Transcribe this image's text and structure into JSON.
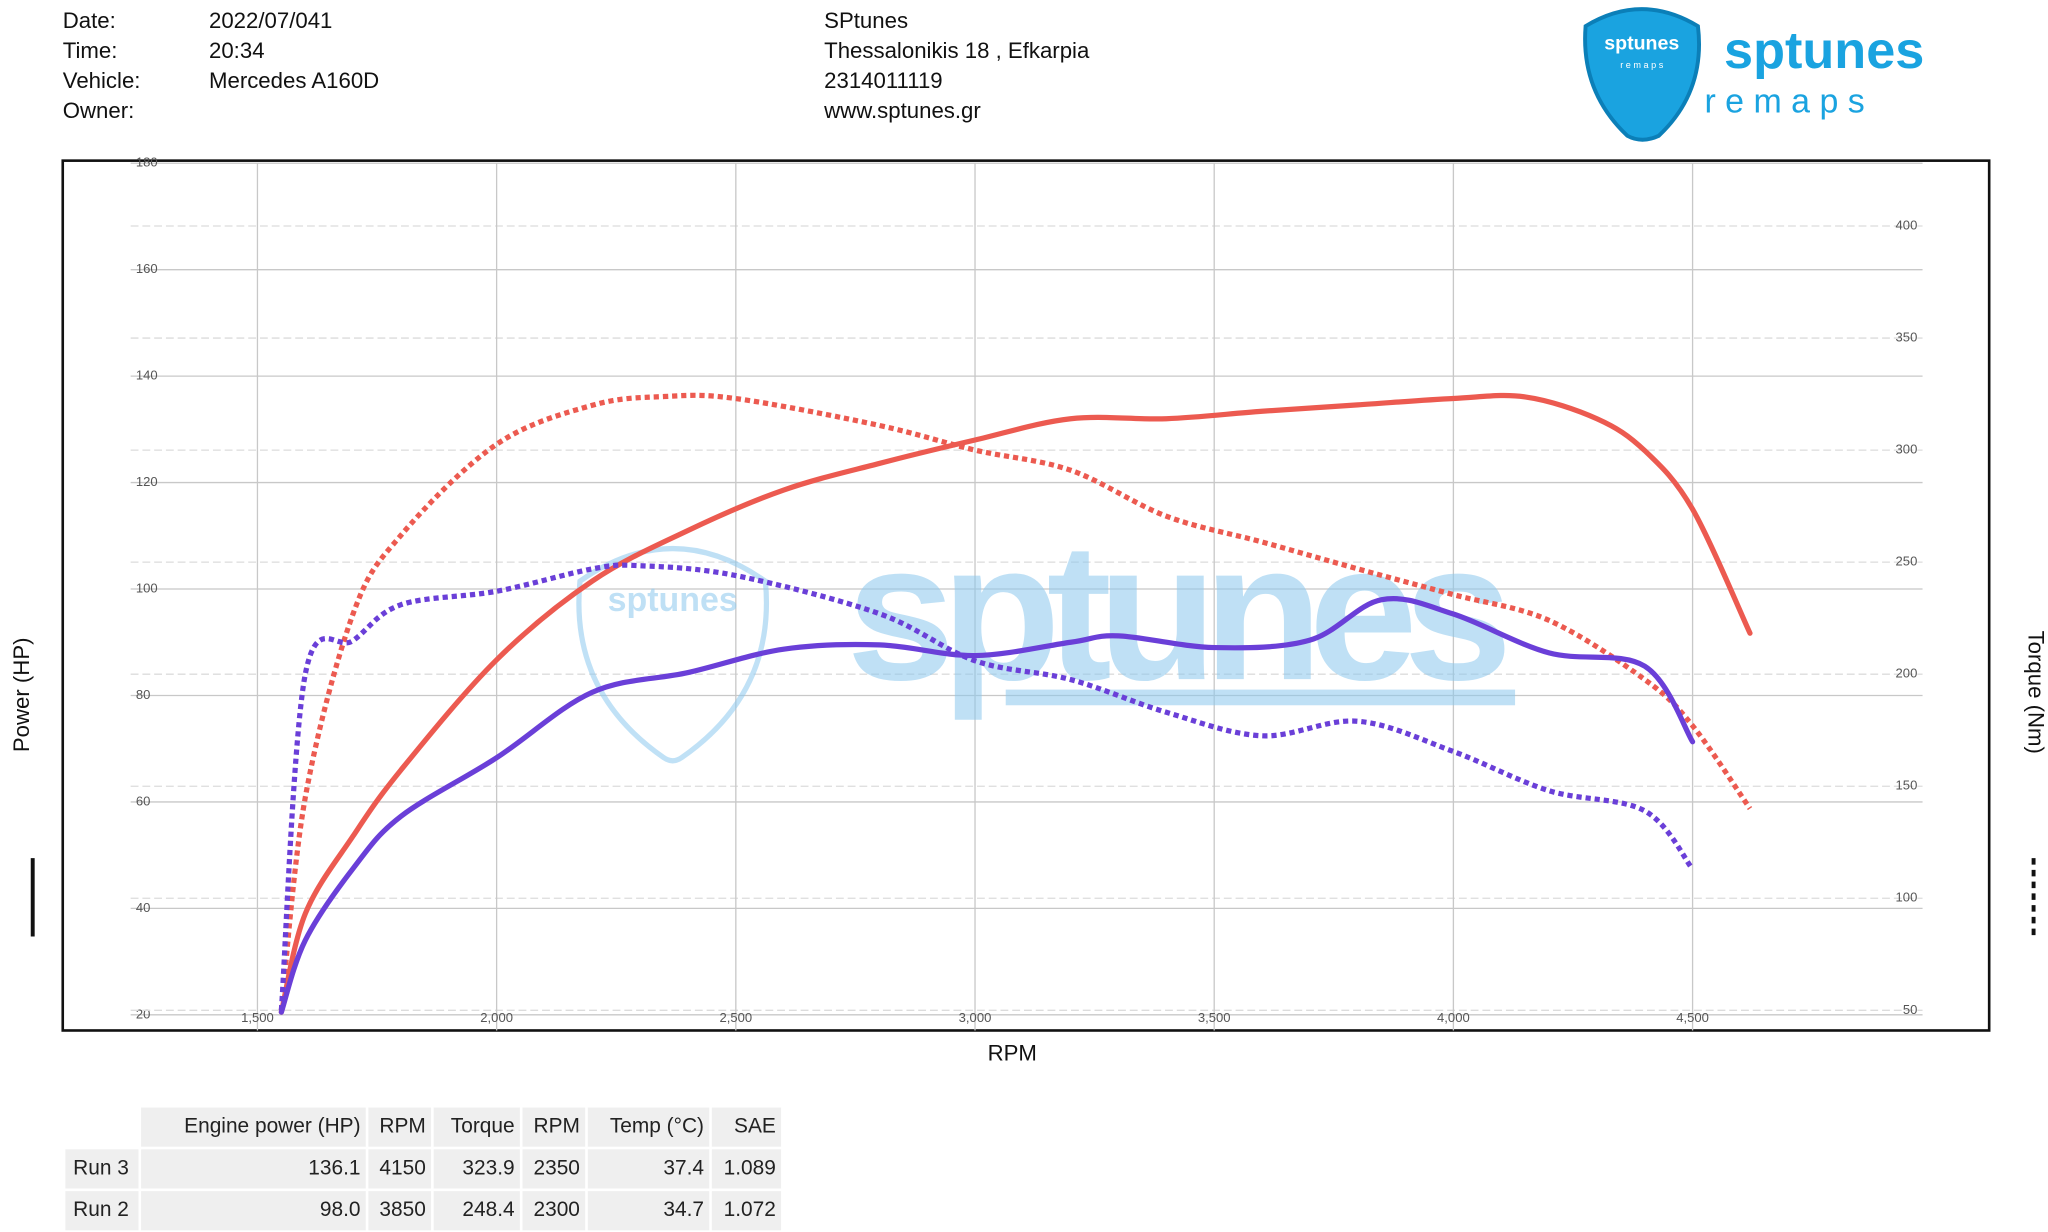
{
  "header": {
    "fields": [
      {
        "label": "Date:",
        "value": "2022/07/041"
      },
      {
        "label": "Time:",
        "value": "20:34"
      },
      {
        "label": "Vehicle:",
        "value": "Mercedes A160D"
      },
      {
        "label": "Owner:"
      }
    ],
    "company": [
      "SPtunes",
      "Thessalonikis 18 , Efkarpia",
      "2314011119",
      "www.sptunes.gr"
    ],
    "logo": {
      "name": "sptunes",
      "tagline": "r e m a p s"
    }
  },
  "chart_data": {
    "type": "line",
    "xlabel": "RPM",
    "ylabel": "Power (HP)",
    "y2label": "Torque (Nm)",
    "watermark": "sptunes",
    "grid": true,
    "xlim": [
      1093,
      5120
    ],
    "xticks": [
      {
        "value": 1500,
        "label": "1,500"
      },
      {
        "value": 2000,
        "label": "2,000"
      },
      {
        "value": 2500,
        "label": "2,500"
      },
      {
        "value": 3000,
        "label": "3,000"
      },
      {
        "value": 3500,
        "label": "3,500"
      },
      {
        "value": 4000,
        "label": "4,000"
      },
      {
        "value": 4500,
        "label": "4,500"
      }
    ],
    "ylim": [
      20,
      180
    ],
    "yticks": [
      20,
      40,
      60,
      80,
      100,
      120,
      140,
      160,
      180
    ],
    "y2lim": [
      48,
      428
    ],
    "y2ticks": [
      50,
      100,
      150,
      200,
      250,
      300,
      350,
      400
    ],
    "series": [
      {
        "color": "#ec5a50",
        "style": "solid",
        "x": [
          1550,
          1600,
          1700,
          1800,
          2000,
          2200,
          2400,
          2600,
          2800,
          3000,
          3200,
          3400,
          3600,
          3800,
          4000,
          4150,
          4300,
          4400,
          4500,
          4620
        ],
        "values": [
          20.5,
          39,
          53.6,
          66,
          86.7,
          101.5,
          111,
          118.6,
          123.6,
          128,
          132,
          132,
          133.4,
          134.6,
          135.8,
          136.1,
          132,
          126,
          115,
          91.7
        ]
      },
      {
        "color": "#ec5a50",
        "style": "dashed",
        "axis": "y2",
        "x": [
          1550,
          1600,
          1700,
          1800,
          2000,
          2200,
          2350,
          2500,
          2800,
          3000,
          3200,
          3400,
          3600,
          3800,
          4000,
          4200,
          4400,
          4500,
          4620
        ],
        "values": [
          50,
          145,
          227,
          262,
          302.6,
          320,
          323.9,
          323,
          311,
          300,
          291,
          270.5,
          259,
          247,
          235.5,
          224,
          197.6,
          177,
          140
        ]
      },
      {
        "color": "#6a3fd8",
        "style": "solid",
        "x": [
          1550,
          1600,
          1700,
          1800,
          2000,
          2200,
          2400,
          2600,
          2800,
          3000,
          3200,
          3300,
          3500,
          3700,
          3850,
          4000,
          4200,
          4400,
          4500
        ],
        "values": [
          20.5,
          34,
          47.5,
          57.3,
          68.3,
          80.6,
          84.3,
          88.7,
          89.5,
          87.5,
          90,
          91.2,
          89,
          90.4,
          98,
          95.3,
          88,
          85.5,
          71.3
        ]
      },
      {
        "color": "#6a3fd8",
        "style": "dashed",
        "axis": "y2",
        "x": [
          1550,
          1600,
          1700,
          1800,
          2000,
          2200,
          2300,
          2500,
          2800,
          3000,
          3200,
          3400,
          3600,
          3800,
          4000,
          4200,
          4400,
          4500
        ],
        "values": [
          50,
          200,
          215,
          231,
          237,
          247,
          248.4,
          244,
          227,
          206,
          197.6,
          183,
          172.5,
          179,
          165.5,
          148,
          139,
          113
        ]
      }
    ]
  },
  "table": {
    "header": [
      "Engine power (HP)",
      "RPM",
      "Torque",
      "RPM",
      "Temp (°C)",
      "SAE"
    ],
    "rows": [
      {
        "run": "Run 3",
        "color": "#e0433a",
        "cells": [
          "136.1",
          "4150",
          "323.9",
          "2350",
          "37.4",
          "1.089"
        ]
      },
      {
        "run": "Run 2",
        "color": "#3a1fb0",
        "cells": [
          "98.0",
          "3850",
          "248.4",
          "2300",
          "34.7",
          "1.072"
        ]
      }
    ]
  }
}
